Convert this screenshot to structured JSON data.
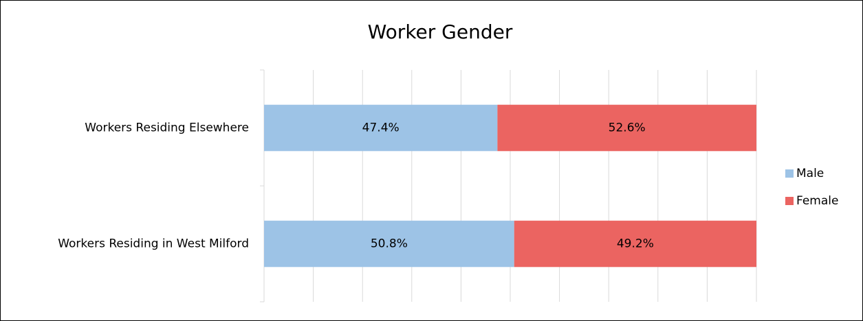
{
  "chart_data": {
    "type": "stacked_bar_horizontal",
    "title": "Worker Gender",
    "categories": [
      "Workers Residing Elsewhere",
      "Workers Residing in West Milford"
    ],
    "series": [
      {
        "name": "Male",
        "color": "#9dc3e6",
        "values": [
          47.4,
          50.8
        ],
        "value_labels": [
          "47.4%",
          "50.8%"
        ]
      },
      {
        "name": "Female",
        "color": "#eb6461",
        "values": [
          52.6,
          49.2
        ],
        "value_labels": [
          "52.6%",
          "49.2%"
        ]
      }
    ],
    "xlim": [
      0,
      100
    ],
    "xticks": [
      0,
      10,
      20,
      30,
      40,
      50,
      60,
      70,
      80,
      90,
      100
    ],
    "grid": true,
    "legend": "right"
  }
}
